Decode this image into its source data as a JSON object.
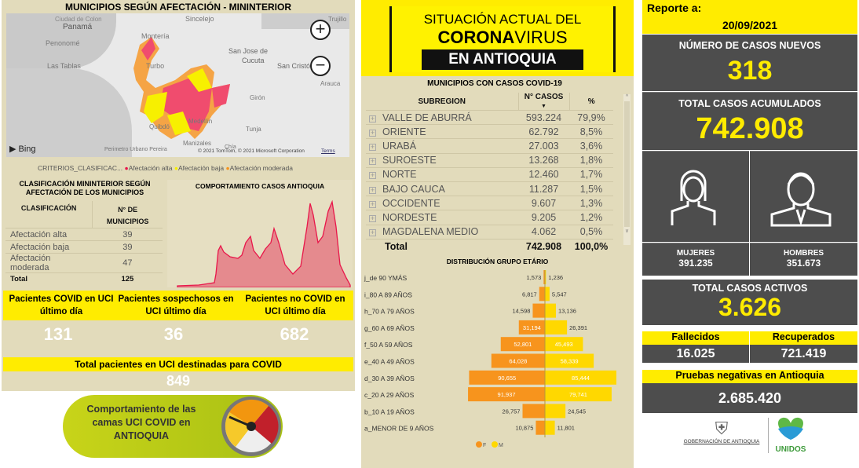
{
  "map": {
    "title": "MUNICIPIOS SEGÚN AFECTACIÓN - MININTERIOR",
    "places": [
      "Panamá",
      "Penonomé",
      "Las Tablas",
      "Montería",
      "Turbo",
      "Sincelejo",
      "San Jose de",
      "Cucuta",
      "San Cristó",
      "Arauca",
      "Girón",
      "Quibdó",
      "Medellín",
      "Tunja",
      "Manizales",
      "Perimetro Urbano Pereira",
      "Chía",
      "Trujillo",
      "Ciudad de Colon"
    ],
    "bing": "Bing",
    "copyright": "© 2021 TomTom, © 2021 Microsoft Corporation",
    "terms": "Terms",
    "zoom_in": "+",
    "zoom_out": "−",
    "legend": {
      "title": "CRITERIOS_CLASIFICAC...",
      "items": [
        {
          "label": "Afectación alta",
          "color": "#e8174a"
        },
        {
          "label": "Afectación baja",
          "color": "#f7f000"
        },
        {
          "label": "Afectación moderada",
          "color": "#f7941d"
        }
      ]
    }
  },
  "clasif": {
    "title": "CLASIFICACIÓN MININTERIOR SEGÚN AFECTACIÓN DE LOS MUNICIPIOS",
    "col1": "CLASIFICACIÓN",
    "col2": "N° DE MUNICIPIOS",
    "rows": [
      [
        "Afectación alta",
        "39"
      ],
      [
        "Afectación baja",
        "39"
      ],
      [
        "Afectación moderada",
        "47"
      ]
    ],
    "total": [
      "Total",
      "125"
    ]
  },
  "trend": {
    "title": "COMPORTAMIENTO CASOS ANTIOQUIA"
  },
  "uci": {
    "h1": "Pacientes COVID en UCI último día",
    "h2": "Pacientes sospechosos en UCI último día",
    "h3": "Pacientes no COVID en UCI último día",
    "v1": "131",
    "v2": "36",
    "v3": "682",
    "total_label": "Total pacientes en UCI destinadas para COVID",
    "total": "849",
    "banner": "Comportamiento de las camas UCI COVID en ANTIOQUIA"
  },
  "header": {
    "l1": "SITUACIÓN ACTUAL DEL",
    "l2a": "CORONA",
    "l2b": "VIRUS",
    "l3": "EN ANTIOQUIA"
  },
  "subreg": {
    "title": "MUNICIPIOS CON CASOS COVID-19",
    "cols": [
      "SUBREGION",
      "N° CASOS",
      "%"
    ],
    "rows": [
      [
        "VALLE DE ABURRÁ",
        "593.224",
        "79,9%"
      ],
      [
        "ORIENTE",
        "62.792",
        "8,5%"
      ],
      [
        "URABÁ",
        "27.003",
        "3,6%"
      ],
      [
        "SUROESTE",
        "13.268",
        "1,8%"
      ],
      [
        "NORTE",
        "12.460",
        "1,7%"
      ],
      [
        "BAJO CAUCA",
        "11.287",
        "1,5%"
      ],
      [
        "OCCIDENTE",
        "9.607",
        "1,3%"
      ],
      [
        "NORDESTE",
        "9.205",
        "1,2%"
      ],
      [
        "MAGDALENA MEDIO",
        "4.062",
        "0,5%"
      ]
    ],
    "total": [
      "Total",
      "742.908",
      "100,0%"
    ]
  },
  "chart_data": {
    "type": "bar",
    "orientation": "horizontal-pyramid",
    "title": "DISTRIBUCIÓN GRUPO ETÁRIO",
    "categories": [
      "j_de 90 YMÁS",
      "i_80 A 89 AÑOS",
      "h_70 A 79 AÑOS",
      "g_60 A 69 AÑOS",
      "f_50 A 59 AÑOS",
      "e_40 A 49 AÑOS",
      "d_30 A 39 AÑOS",
      "c_20 A 29 AÑOS",
      "b_10 A 19 AÑOS",
      "a_MENOR DE 9 AÑOS"
    ],
    "series": [
      {
        "name": "F",
        "color": "#f7941d",
        "values": [
          1573,
          6817,
          14598,
          31194,
          52801,
          64028,
          90655,
          91937,
          26757,
          10875
        ],
        "labels": [
          "1,573",
          "6,817",
          "14,598",
          "31,194",
          "52,801",
          "64,028",
          "90,655",
          "91,937",
          "26,757",
          "10,875"
        ]
      },
      {
        "name": "M",
        "color": "#ffd800",
        "values": [
          1236,
          5547,
          13136,
          26391,
          45493,
          58339,
          85444,
          79741,
          24545,
          11801
        ],
        "labels": [
          "1,236",
          "5,547",
          "13,136",
          "26,391",
          "45,493",
          "58,339",
          "85,444",
          "79,741",
          "24,545",
          "11,801"
        ]
      }
    ],
    "legend": "bottom"
  },
  "report": {
    "label": "Reporte a:",
    "date": "20/09/2021",
    "new_label": "NÚMERO DE CASOS NUEVOS",
    "new": "318",
    "acc_label": "TOTAL CASOS ACUMULADOS",
    "acc": "742.908",
    "women_label": "MUJERES",
    "women": "391.235",
    "men_label": "HOMBRES",
    "men": "351.673",
    "active_label": "TOTAL CASOS ACTIVOS",
    "active": "3.626",
    "dead_label": "Fallecidos",
    "dead": "16.025",
    "rec_label": "Recuperados",
    "rec": "721.419",
    "neg_label": "Pruebas negativas en Antioquia",
    "neg": "2.685.420",
    "logo1": "GOBERNACIÓN DE ANTIOQUIA",
    "logo2": "UNIDOS"
  }
}
